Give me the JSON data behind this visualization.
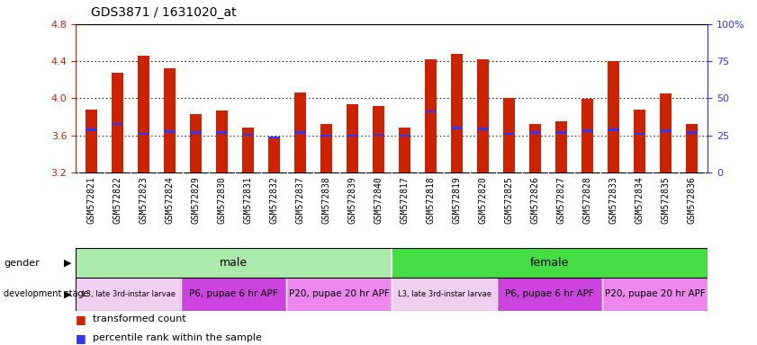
{
  "title": "GDS3871 / 1631020_at",
  "samples": [
    "GSM572821",
    "GSM572822",
    "GSM572823",
    "GSM572824",
    "GSM572829",
    "GSM572830",
    "GSM572831",
    "GSM572832",
    "GSM572837",
    "GSM572838",
    "GSM572839",
    "GSM572840",
    "GSM572817",
    "GSM572818",
    "GSM572819",
    "GSM572820",
    "GSM572825",
    "GSM572826",
    "GSM572827",
    "GSM572828",
    "GSM572833",
    "GSM572834",
    "GSM572835",
    "GSM572836"
  ],
  "bar_values": [
    3.88,
    4.28,
    4.46,
    4.32,
    3.83,
    3.87,
    3.68,
    3.58,
    4.06,
    3.72,
    3.94,
    3.92,
    3.68,
    4.42,
    4.48,
    4.42,
    4.0,
    3.72,
    3.75,
    3.99,
    4.4,
    3.88,
    4.05,
    3.72
  ],
  "percentile_values": [
    3.66,
    3.72,
    3.62,
    3.64,
    3.63,
    3.63,
    3.61,
    3.58,
    3.63,
    3.6,
    3.6,
    3.61,
    3.6,
    3.86,
    3.68,
    3.67,
    3.62,
    3.63,
    3.63,
    3.65,
    3.66,
    3.62,
    3.65,
    3.63
  ],
  "bar_color": "#cc2200",
  "percentile_color": "#3333ff",
  "ymin": 3.2,
  "ymax": 4.8,
  "yticks": [
    3.2,
    3.6,
    4.0,
    4.4,
    4.8
  ],
  "grid_yticks": [
    3.6,
    4.0,
    4.4
  ],
  "right_yticks": [
    0,
    25,
    50,
    75,
    100
  ],
  "right_yticklabels": [
    "0",
    "25",
    "50",
    "75",
    "100%"
  ],
  "male_color": "#aaeaaa",
  "female_color": "#44dd44",
  "dev_colors": [
    "#f0d0f0",
    "#cc44dd",
    "#ee88ee",
    "#f0d0f0",
    "#cc44dd",
    "#ee88ee"
  ],
  "dev_stages": [
    {
      "label": "L3, late 3rd-instar larvae",
      "start": 0,
      "end": 4
    },
    {
      "label": "P6, pupae 6 hr APF",
      "start": 4,
      "end": 8
    },
    {
      "label": "P20, pupae 20 hr APF",
      "start": 8,
      "end": 12
    },
    {
      "label": "L3, late 3rd-instar larvae",
      "start": 12,
      "end": 16
    },
    {
      "label": "P6, pupae 6 hr APF",
      "start": 16,
      "end": 20
    },
    {
      "label": "P20, pupae 20 hr APF",
      "start": 20,
      "end": 24
    }
  ],
  "bar_width": 0.45,
  "bg_color": "#ffffff",
  "xtick_bg": "#d8d8d8",
  "axis_color_left": "#cc2200",
  "axis_color_right": "#3333ff",
  "label_fontsize": 7,
  "tick_fontsize": 8,
  "title_fontsize": 10
}
